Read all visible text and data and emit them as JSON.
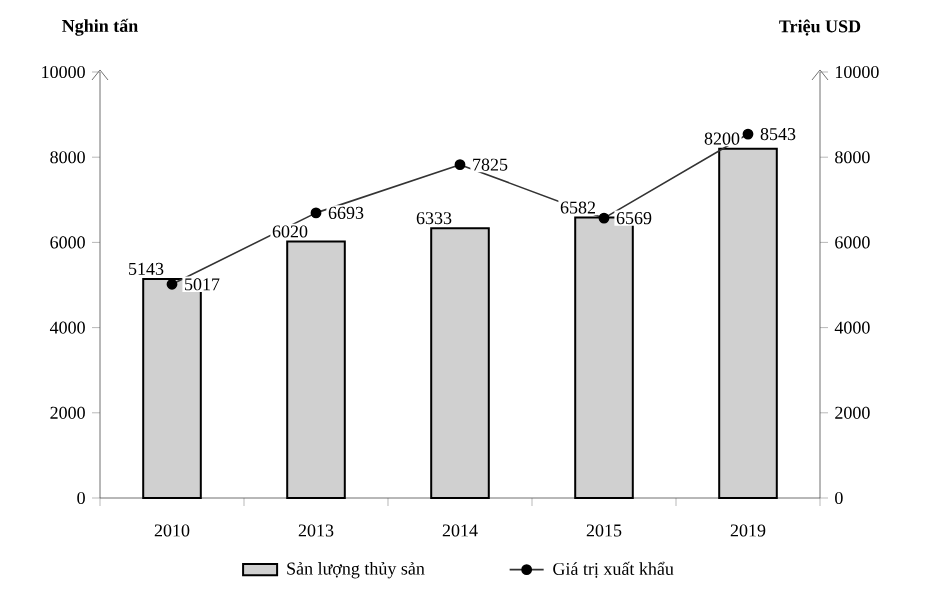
{
  "chart_data": {
    "type": "bar",
    "categories": [
      "2010",
      "2013",
      "2014",
      "2015",
      "2019"
    ],
    "ylabel": "Nghin tấn",
    "y2label": "Triệu USD",
    "ylim": [
      0,
      10000
    ],
    "yticks": [
      0,
      2000,
      4000,
      6000,
      8000,
      10000
    ],
    "y2lim": [
      0,
      10000
    ],
    "y2ticks": [
      0,
      2000,
      4000,
      6000,
      8000,
      10000
    ],
    "series": [
      {
        "name": "Sản lượng thủy sản",
        "color": "#d0d0d0",
        "values": [
          5143,
          6020,
          6333,
          6582,
          8200
        ]
      },
      {
        "name": "Giá trị xuất khẩu",
        "type": "line",
        "axis": "y2",
        "color": "#333333",
        "values": [
          5017,
          6693,
          7825,
          6569,
          8543
        ]
      }
    ],
    "data_labels": true,
    "legend": "bottom",
    "marker": "circle",
    "line_style": "solid",
    "grid": false
  }
}
